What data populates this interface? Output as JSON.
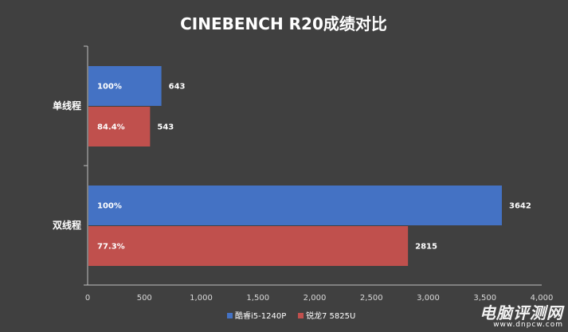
{
  "chart_data": {
    "type": "bar",
    "orientation": "horizontal",
    "title": "CINEBENCH R20成绩对比",
    "categories": [
      "单线程",
      "双线程"
    ],
    "series": [
      {
        "name": "酷睿i5-1240P",
        "color": "#4472c4",
        "values": [
          643,
          3642
        ],
        "inner_labels": [
          "100%",
          "100%"
        ]
      },
      {
        "name": "锐龙7 5825U",
        "color": "#c0504d",
        "values": [
          543,
          2815
        ],
        "inner_labels": [
          "84.4%",
          "77.3%"
        ]
      }
    ],
    "xlim": [
      0,
      4000
    ],
    "xticks": [
      "0",
      "500",
      "1,000",
      "1,500",
      "2,000",
      "2,500",
      "3,000",
      "3,500",
      "4,000"
    ],
    "grid": false,
    "legend_position": "bottom"
  },
  "watermark": {
    "main": "电脑评测网",
    "sub": "www.dnpcw.com"
  }
}
